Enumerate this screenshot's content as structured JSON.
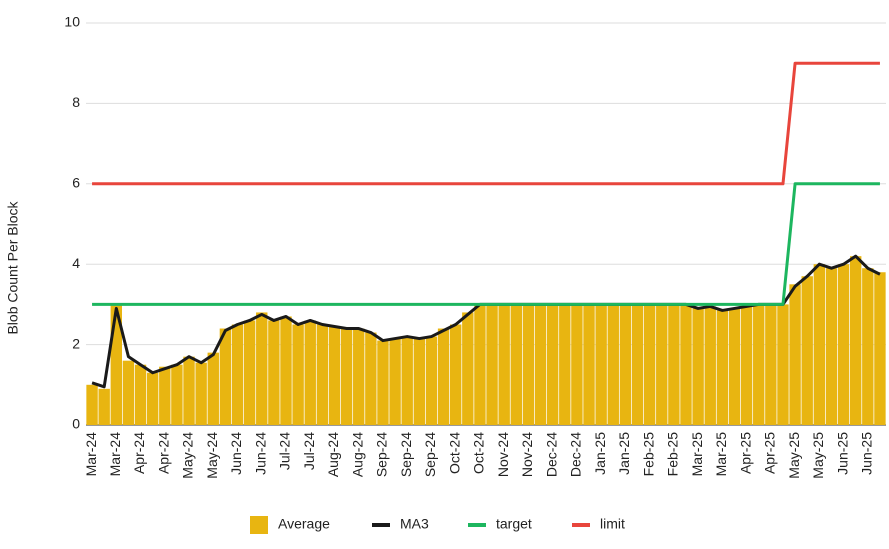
{
  "chart_data": {
    "type": "bar",
    "y_label": "Blob Count Per Block",
    "categories": [
      "Mar-24",
      null,
      "Mar-24",
      null,
      "Apr-24",
      null,
      "Apr-24",
      null,
      "May-24",
      null,
      "May-24",
      null,
      "Jun-24",
      null,
      "Jun-24",
      null,
      "Jul-24",
      null,
      "Jul-24",
      null,
      "Aug-24",
      null,
      "Aug-24",
      null,
      "Sep-24",
      null,
      "Sep-24",
      null,
      "Sep-24",
      null,
      "Oct-24",
      null,
      "Oct-24",
      null,
      "Nov-24",
      null,
      "Nov-24",
      null,
      "Dec-24",
      null,
      "Dec-24",
      null,
      "Jan-25",
      null,
      "Jan-25",
      null,
      "Feb-25",
      null,
      "Feb-25",
      null,
      "Mar-25",
      null,
      "Mar-25",
      null,
      "Apr-25",
      null,
      "Apr-25",
      null,
      "May-25",
      null,
      "May-25",
      null,
      "Jun-25",
      null,
      "Jun-25",
      null
    ],
    "series": [
      {
        "name": "Average",
        "type": "bar",
        "color": "#e8b511",
        "values": [
          1.0,
          0.9,
          3.0,
          1.6,
          1.5,
          1.3,
          1.45,
          1.5,
          1.7,
          1.55,
          1.8,
          2.4,
          2.5,
          2.6,
          2.8,
          2.6,
          2.7,
          2.5,
          2.6,
          2.5,
          2.45,
          2.4,
          2.4,
          2.3,
          2.1,
          2.15,
          2.2,
          2.15,
          2.2,
          2.4,
          2.5,
          2.8,
          3.0,
          3.0,
          3.0,
          3.0,
          3.0,
          3.0,
          3.0,
          3.0,
          3.0,
          3.0,
          3.0,
          3.0,
          3.0,
          3.0,
          3.0,
          3.0,
          3.0,
          3.0,
          2.9,
          2.95,
          2.85,
          2.9,
          2.95,
          3.0,
          3.0,
          3.0,
          3.5,
          3.7,
          4.0,
          3.9,
          4.0,
          4.2,
          3.9,
          3.8
        ]
      },
      {
        "name": "MA3",
        "type": "line",
        "color": "#1a1a1a",
        "values": [
          1.05,
          0.95,
          2.9,
          1.7,
          1.5,
          1.3,
          1.4,
          1.5,
          1.7,
          1.55,
          1.75,
          2.35,
          2.5,
          2.6,
          2.75,
          2.6,
          2.7,
          2.5,
          2.6,
          2.5,
          2.45,
          2.4,
          2.4,
          2.3,
          2.1,
          2.15,
          2.2,
          2.15,
          2.2,
          2.35,
          2.5,
          2.75,
          3.0,
          3.0,
          3.0,
          3.0,
          3.0,
          3.0,
          3.0,
          3.0,
          3.0,
          3.0,
          3.0,
          3.0,
          3.0,
          3.0,
          3.0,
          3.0,
          3.0,
          3.0,
          2.9,
          2.95,
          2.85,
          2.9,
          2.95,
          3.0,
          3.0,
          3.0,
          3.45,
          3.7,
          4.0,
          3.9,
          4.0,
          4.2,
          3.9,
          3.75
        ]
      },
      {
        "name": "target",
        "type": "line",
        "color": "#1db65f",
        "values": [
          3,
          3,
          3,
          3,
          3,
          3,
          3,
          3,
          3,
          3,
          3,
          3,
          3,
          3,
          3,
          3,
          3,
          3,
          3,
          3,
          3,
          3,
          3,
          3,
          3,
          3,
          3,
          3,
          3,
          3,
          3,
          3,
          3,
          3,
          3,
          3,
          3,
          3,
          3,
          3,
          3,
          3,
          3,
          3,
          3,
          3,
          3,
          3,
          3,
          3,
          3,
          3,
          3,
          3,
          3,
          3,
          3,
          3,
          6,
          6,
          6,
          6,
          6,
          6,
          6,
          6
        ]
      },
      {
        "name": "limit",
        "type": "line",
        "color": "#e8453c",
        "values": [
          6,
          6,
          6,
          6,
          6,
          6,
          6,
          6,
          6,
          6,
          6,
          6,
          6,
          6,
          6,
          6,
          6,
          6,
          6,
          6,
          6,
          6,
          6,
          6,
          6,
          6,
          6,
          6,
          6,
          6,
          6,
          6,
          6,
          6,
          6,
          6,
          6,
          6,
          6,
          6,
          6,
          6,
          6,
          6,
          6,
          6,
          6,
          6,
          6,
          6,
          6,
          6,
          6,
          6,
          6,
          6,
          6,
          6,
          9,
          9,
          9,
          9,
          9,
          9,
          9,
          9
        ]
      }
    ],
    "ylim": [
      0,
      10
    ],
    "yticks": [
      0,
      2,
      4,
      6,
      8,
      10
    ],
    "grid": true,
    "legend": "bottom"
  }
}
